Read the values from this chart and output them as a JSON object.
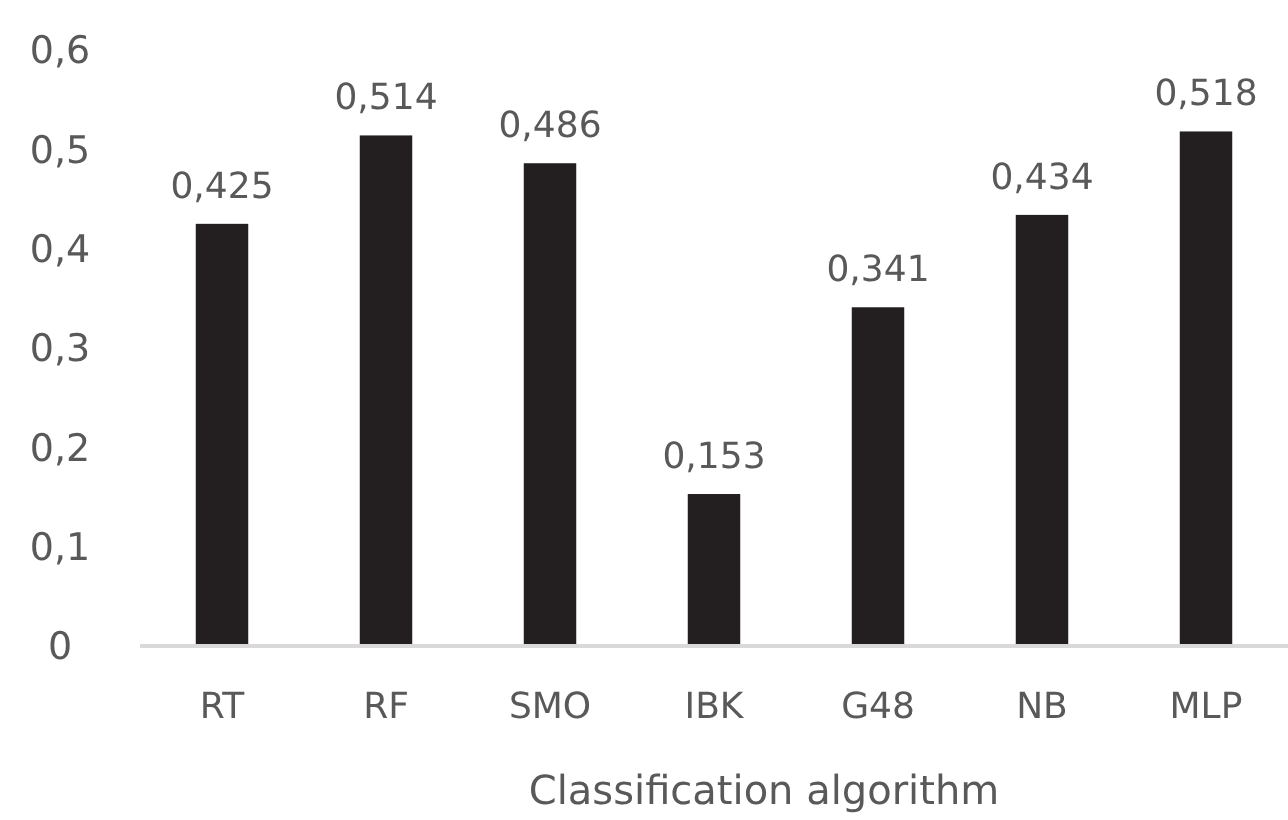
{
  "chart_data": {
    "type": "bar",
    "xlabel": "Classification algorithm",
    "categories": [
      "RT",
      "RF",
      "SMO",
      "IBK",
      "G48",
      "NB",
      "MLP"
    ],
    "values": [
      0.425,
      0.514,
      0.486,
      0.153,
      0.341,
      0.434,
      0.518
    ],
    "value_labels": [
      "0,425",
      "0,514",
      "0,486",
      "0,153",
      "0,341",
      "0,434",
      "0,518"
    ],
    "color": "#231f20",
    "ylim": [
      0,
      0.6
    ],
    "yticks": [
      0,
      {
        "value": 0.1,
        "label": "0,1"
      },
      {
        "value": 0.2,
        "label": "0,2"
      },
      {
        "value": 0.3,
        "label": "0,3"
      },
      {
        "value": 0.4,
        "label": "0,4"
      },
      {
        "value": 0.5,
        "label": "0,5"
      },
      {
        "value": 0.6,
        "label": "0,6"
      }
    ],
    "grid": false
  }
}
